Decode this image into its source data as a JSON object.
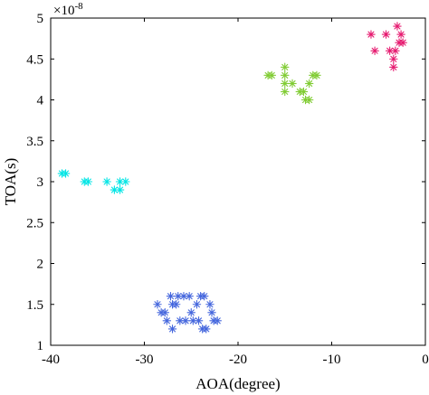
{
  "chart_data": {
    "type": "scatter",
    "xlabel": "AOA(degree)",
    "ylabel": "TOA(s)",
    "y_multiplier_label": "×10",
    "y_multiplier_exponent": "-8",
    "xlim": [
      -40,
      0
    ],
    "ylim": [
      1,
      5
    ],
    "x_ticks": [
      -40,
      -30,
      -20,
      -10,
      0
    ],
    "x_tick_labels": [
      "-40",
      "-30",
      "-20",
      "-10",
      "0"
    ],
    "y_ticks": [
      1,
      1.5,
      2,
      2.5,
      3,
      3.5,
      4,
      4.5,
      5
    ],
    "y_tick_labels": [
      "1",
      "1.5",
      "2",
      "2.5",
      "3",
      "3.5",
      "4",
      "4.5",
      "5"
    ],
    "grid": false,
    "marker": "asterisk",
    "series": [
      {
        "color": "#00e5e5",
        "points": [
          [
            -38.8,
            3.1
          ],
          [
            -38.4,
            3.1
          ],
          [
            -36.4,
            3.0
          ],
          [
            -36.0,
            3.0
          ],
          [
            -34.0,
            3.0
          ],
          [
            -33.2,
            2.9
          ],
          [
            -32.6,
            2.9
          ],
          [
            -32.6,
            3.0
          ],
          [
            -32.0,
            3.0
          ]
        ]
      },
      {
        "color": "#80cc33",
        "points": [
          [
            -16.8,
            4.3
          ],
          [
            -16.4,
            4.3
          ],
          [
            -15.0,
            4.4
          ],
          [
            -15.0,
            4.3
          ],
          [
            -15.0,
            4.2
          ],
          [
            -15.0,
            4.1
          ],
          [
            -14.2,
            4.2
          ],
          [
            -13.4,
            4.1
          ],
          [
            -13.0,
            4.1
          ],
          [
            -12.8,
            4.0
          ],
          [
            -12.4,
            4.0
          ],
          [
            -12.4,
            4.2
          ],
          [
            -12.0,
            4.3
          ],
          [
            -11.6,
            4.3
          ]
        ]
      },
      {
        "color": "#e6196f",
        "points": [
          [
            -5.8,
            4.8
          ],
          [
            -5.4,
            4.6
          ],
          [
            -4.2,
            4.8
          ],
          [
            -3.8,
            4.6
          ],
          [
            -3.4,
            4.5
          ],
          [
            -3.4,
            4.4
          ],
          [
            -3.2,
            4.6
          ],
          [
            -3.0,
            4.9
          ],
          [
            -2.8,
            4.7
          ],
          [
            -2.6,
            4.8
          ],
          [
            -2.4,
            4.7
          ]
        ]
      },
      {
        "color": "#4466dd",
        "points": [
          [
            -28.6,
            1.5
          ],
          [
            -28.2,
            1.4
          ],
          [
            -27.8,
            1.4
          ],
          [
            -27.6,
            1.3
          ],
          [
            -27.2,
            1.6
          ],
          [
            -27.0,
            1.5
          ],
          [
            -27.0,
            1.2
          ],
          [
            -26.6,
            1.5
          ],
          [
            -26.4,
            1.6
          ],
          [
            -26.2,
            1.3
          ],
          [
            -25.8,
            1.6
          ],
          [
            -25.6,
            1.3
          ],
          [
            -25.2,
            1.6
          ],
          [
            -25.0,
            1.4
          ],
          [
            -24.8,
            1.3
          ],
          [
            -24.4,
            1.5
          ],
          [
            -24.2,
            1.3
          ],
          [
            -24.0,
            1.6
          ],
          [
            -23.8,
            1.2
          ],
          [
            -23.6,
            1.6
          ],
          [
            -23.4,
            1.2
          ],
          [
            -23.0,
            1.5
          ],
          [
            -22.8,
            1.4
          ],
          [
            -22.6,
            1.3
          ],
          [
            -22.2,
            1.3
          ]
        ]
      }
    ]
  }
}
